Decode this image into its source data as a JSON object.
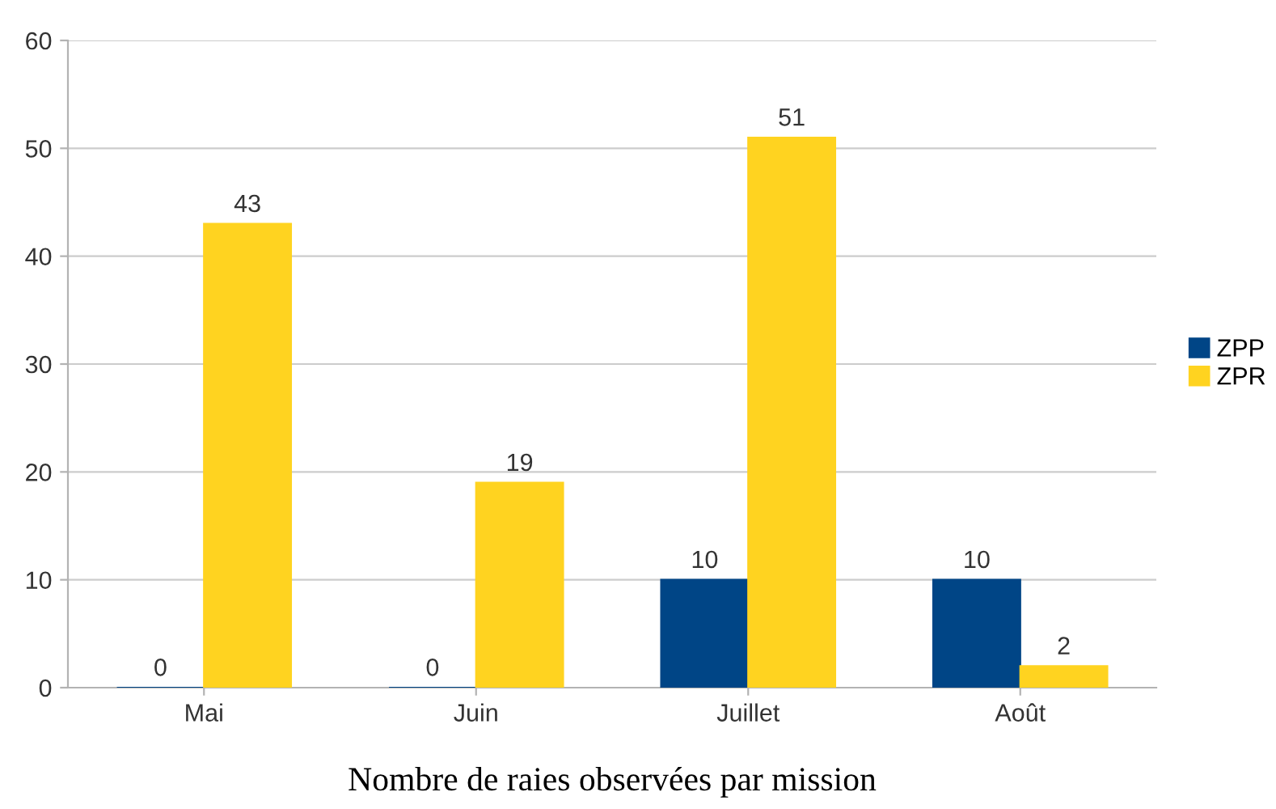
{
  "chart_data": {
    "type": "bar",
    "xlabel": "Nombre de raies observées par mission",
    "categories": [
      "Mai",
      "Juin",
      "Juillet",
      "Août"
    ],
    "series": [
      {
        "name": "ZPP",
        "color": "#004586",
        "values": [
          0,
          0,
          10,
          10
        ]
      },
      {
        "name": "ZPR",
        "color": "#ffd320",
        "values": [
          43,
          19,
          51,
          2
        ]
      }
    ],
    "ylim": [
      0,
      60
    ],
    "yticks": [
      0,
      10,
      20,
      30,
      40,
      50,
      60
    ],
    "grid": "y",
    "legend": "right",
    "data_labels": true
  }
}
